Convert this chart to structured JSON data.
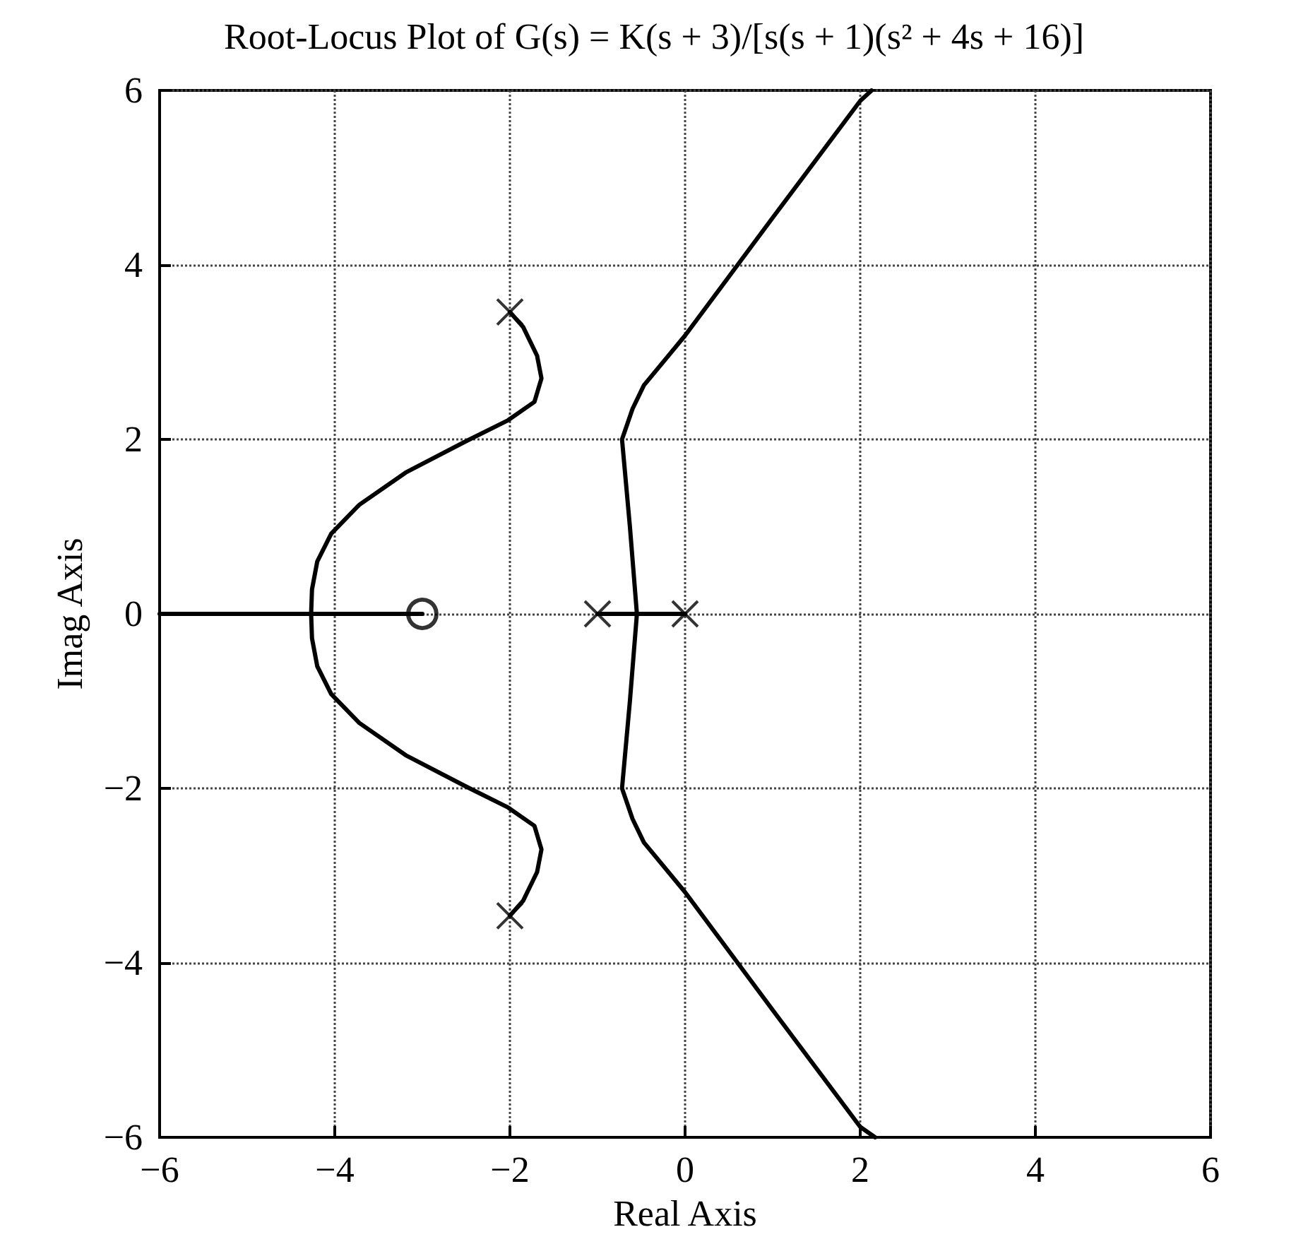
{
  "chart_data": {
    "type": "line",
    "title": "Root-Locus Plot of G(s) = K(s + 3)/[s(s + 1)(s² + 4s + 16)]",
    "xlabel": "Real Axis",
    "ylabel": "Imag Axis",
    "xlim": [
      -6,
      6
    ],
    "ylim": [
      -6,
      6
    ],
    "xticks": [
      {
        "value": -6,
        "label": "−6"
      },
      {
        "value": -4,
        "label": "−4"
      },
      {
        "value": -2,
        "label": "−2"
      },
      0,
      2,
      4,
      6
    ],
    "yticks": [
      {
        "value": -6,
        "label": "−6"
      },
      {
        "value": -4,
        "label": "−4"
      },
      {
        "value": -2,
        "label": "−2"
      },
      0,
      2,
      4,
      6
    ],
    "grid": true,
    "line_style": "solid",
    "series": [
      {
        "color": "#000000",
        "marker": "none",
        "x": [
          -2,
          -1.85,
          -1.69,
          -1.64,
          -1.72,
          -2.02,
          -2.5,
          -3.19,
          -3.72,
          -4.04,
          -4.2,
          -4.26,
          -4.27,
          -4.26,
          -4.2,
          -4.04,
          -3.72,
          -3.19,
          -2.5,
          -2.02,
          -1.72,
          -1.64,
          -1.69,
          -1.85,
          -2
        ],
        "values": [
          3.46,
          3.29,
          2.96,
          2.7,
          2.43,
          2.22,
          1.98,
          1.62,
          1.25,
          0.92,
          0.6,
          0.28,
          0,
          -0.28,
          -0.6,
          -0.92,
          -1.25,
          -1.62,
          -1.98,
          -2.22,
          -2.43,
          -2.7,
          -2.96,
          -3.29,
          -3.46
        ]
      },
      {
        "color": "#000000",
        "marker": "none",
        "x": [
          2.13,
          2,
          1,
          0,
          -0.47,
          -0.6,
          -0.72,
          -0.63,
          -0.55,
          -0.63,
          -0.72,
          -0.6,
          -0.47,
          0,
          1,
          2,
          2.17
        ],
        "values": [
          6,
          5.88,
          4.54,
          3.19,
          2.62,
          2.35,
          2,
          1,
          0,
          -1,
          -2,
          -2.35,
          -2.62,
          -3.19,
          -4.54,
          -5.88,
          -6
        ]
      },
      {
        "color": "#000000",
        "marker": "none",
        "x": [
          -6,
          -3
        ],
        "values": [
          0,
          0
        ]
      },
      {
        "color": "#000000",
        "marker": "none",
        "x": [
          -1,
          0
        ],
        "values": [
          0,
          0
        ]
      },
      {
        "type": "scatter",
        "color": "#000000",
        "marker": "cross",
        "x": [
          -2,
          -2,
          -1,
          0
        ],
        "values": [
          3.46,
          -3.46,
          0,
          0
        ]
      },
      {
        "type": "scatter",
        "color": "#000000",
        "marker": "circle",
        "x": [
          -3
        ],
        "values": [
          0
        ]
      }
    ]
  }
}
